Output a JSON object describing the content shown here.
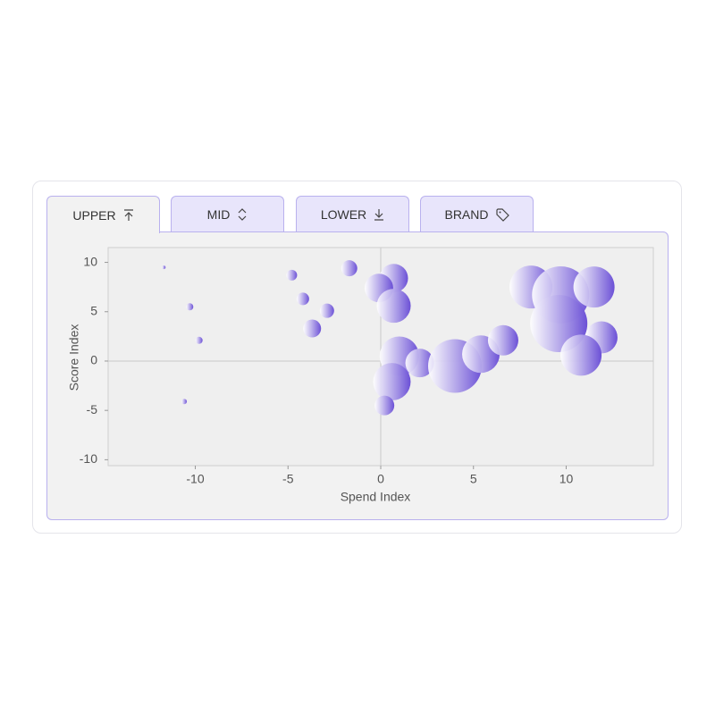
{
  "tabs": [
    {
      "label": "UPPER"
    },
    {
      "label": "MID"
    },
    {
      "label": "LOWER"
    },
    {
      "label": "BRAND"
    }
  ],
  "chart_data": {
    "type": "scatter",
    "x_label": "Spend Index",
    "y_label": "Score Index",
    "color": "#6b50d6",
    "x": [
      -11.7,
      -10.3,
      -9.8,
      -10.6,
      -4.8,
      -4.2,
      -2.9,
      -3.7,
      -1.7,
      0.7,
      -0.1,
      0.7,
      1.0,
      2.1,
      0.6,
      0.2,
      4.0,
      5.4,
      6.6,
      8.1,
      9.7,
      9.6,
      11.5,
      11.9,
      10.8
    ],
    "y": [
      9.5,
      5.5,
      2.1,
      -4.1,
      8.7,
      6.3,
      5.1,
      3.3,
      9.4,
      8.4,
      7.4,
      5.6,
      0.5,
      -0.2,
      -2.1,
      -4.5,
      -0.5,
      0.7,
      2.1,
      7.5,
      6.7,
      3.8,
      7.5,
      2.4,
      0.6
    ],
    "sizes": [
      2,
      4,
      4,
      3,
      6,
      7,
      8,
      10,
      9,
      16,
      16,
      19,
      22,
      16,
      21,
      11,
      30,
      21,
      17,
      24,
      32,
      32,
      23,
      18,
      23
    ],
    "xlim": [
      -14.7,
      14.7
    ],
    "ylim": [
      -10.6,
      11.5
    ],
    "xticks": [
      -10,
      -5,
      0,
      5,
      10
    ],
    "yticks": [
      -10,
      -5,
      0,
      5,
      10
    ],
    "zero_lines": true
  }
}
